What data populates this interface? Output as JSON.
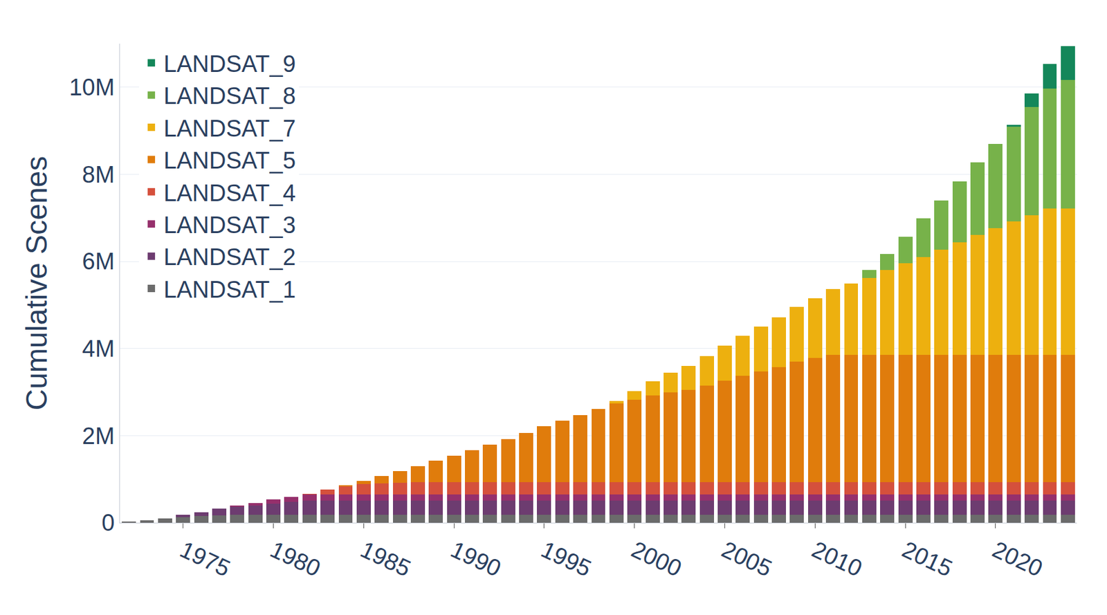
{
  "chart_data": {
    "type": "bar",
    "stacked": true,
    "grid": true,
    "legend": "top-left",
    "y_label": "Cumulative Scenes",
    "x": [
      1972,
      1973,
      1974,
      1975,
      1976,
      1977,
      1978,
      1979,
      1980,
      1981,
      1982,
      1983,
      1984,
      1985,
      1986,
      1987,
      1988,
      1989,
      1990,
      1991,
      1992,
      1993,
      1994,
      1995,
      1996,
      1997,
      1998,
      1999,
      2000,
      2001,
      2002,
      2003,
      2004,
      2005,
      2006,
      2007,
      2008,
      2009,
      2010,
      2011,
      2012,
      2013,
      2014,
      2015,
      2016,
      2017,
      2018,
      2019,
      2020,
      2021,
      2022,
      2023,
      2024
    ],
    "xlim": [
      1971.5,
      2024.5
    ],
    "xticks": [
      1975,
      1980,
      1985,
      1990,
      1995,
      2000,
      2005,
      2010,
      2015,
      2020
    ],
    "ylim": [
      0,
      11000000
    ],
    "yticks": [
      0,
      {
        "value": 2000000,
        "label": "2M"
      },
      {
        "value": 4000000,
        "label": "4M"
      },
      {
        "value": 6000000,
        "label": "6M"
      },
      {
        "value": 8000000,
        "label": "8M"
      },
      {
        "value": 10000000,
        "label": "10M"
      }
    ],
    "series": [
      {
        "name": "LANDSAT_1",
        "color": "#6b6b6b",
        "values": [
          20000,
          60000,
          100000,
          130000,
          150000,
          170000,
          180000,
          180000,
          180000,
          180000,
          180000,
          180000,
          180000,
          180000,
          180000,
          180000,
          180000,
          180000,
          180000,
          180000,
          180000,
          180000,
          180000,
          180000,
          180000,
          180000,
          180000,
          180000,
          180000,
          180000,
          180000,
          180000,
          180000,
          180000,
          180000,
          180000,
          180000,
          180000,
          180000,
          180000,
          180000,
          180000,
          180000,
          180000,
          180000,
          180000,
          180000,
          180000,
          180000,
          180000,
          180000,
          180000,
          180000
        ]
      },
      {
        "name": "LANDSAT_2",
        "color": "#6d3c70",
        "values": [
          0,
          0,
          0,
          50000,
          90000,
          150000,
          190000,
          220000,
          260000,
          300000,
          330000,
          330000,
          330000,
          330000,
          330000,
          330000,
          330000,
          330000,
          330000,
          330000,
          330000,
          330000,
          330000,
          330000,
          330000,
          330000,
          330000,
          330000,
          330000,
          330000,
          330000,
          330000,
          330000,
          330000,
          330000,
          330000,
          330000,
          330000,
          330000,
          330000,
          330000,
          330000,
          330000,
          330000,
          330000,
          330000,
          330000,
          330000,
          330000,
          330000,
          330000,
          330000,
          330000
        ]
      },
      {
        "name": "LANDSAT_3",
        "color": "#96306c",
        "values": [
          0,
          0,
          0,
          0,
          0,
          0,
          30000,
          50000,
          90000,
          120000,
          140000,
          140000,
          140000,
          140000,
          140000,
          140000,
          140000,
          140000,
          140000,
          140000,
          140000,
          140000,
          140000,
          140000,
          140000,
          140000,
          140000,
          140000,
          140000,
          140000,
          140000,
          140000,
          140000,
          140000,
          140000,
          140000,
          140000,
          140000,
          140000,
          140000,
          140000,
          140000,
          140000,
          140000,
          140000,
          140000,
          140000,
          140000,
          140000,
          140000,
          140000,
          140000,
          140000
        ]
      },
      {
        "name": "LANDSAT_4",
        "color": "#d5503c",
        "values": [
          0,
          0,
          0,
          0,
          0,
          0,
          0,
          0,
          0,
          0,
          10000,
          110000,
          190000,
          240000,
          260000,
          270000,
          280000,
          280000,
          280000,
          280000,
          280000,
          280000,
          280000,
          280000,
          280000,
          280000,
          280000,
          280000,
          280000,
          280000,
          280000,
          280000,
          280000,
          280000,
          280000,
          280000,
          280000,
          280000,
          280000,
          280000,
          280000,
          280000,
          280000,
          280000,
          280000,
          280000,
          280000,
          280000,
          280000,
          280000,
          280000,
          280000,
          280000
        ]
      },
      {
        "name": "LANDSAT_5",
        "color": "#e07c0c",
        "values": [
          0,
          0,
          0,
          0,
          0,
          0,
          0,
          0,
          0,
          0,
          0,
          0,
          20000,
          70000,
          160000,
          260000,
          370000,
          500000,
          610000,
          740000,
          860000,
          990000,
          1130000,
          1280000,
          1410000,
          1540000,
          1680000,
          1810000,
          1890000,
          1990000,
          2060000,
          2120000,
          2220000,
          2330000,
          2450000,
          2540000,
          2640000,
          2770000,
          2850000,
          2920000,
          2920000,
          2920000,
          2920000,
          2920000,
          2920000,
          2920000,
          2920000,
          2920000,
          2920000,
          2920000,
          2920000,
          2920000,
          2920000
        ]
      },
      {
        "name": "LANDSAT_7",
        "color": "#edb00f",
        "values": [
          0,
          0,
          0,
          0,
          0,
          0,
          0,
          0,
          0,
          0,
          0,
          0,
          0,
          0,
          0,
          0,
          0,
          0,
          0,
          0,
          0,
          0,
          0,
          0,
          0,
          0,
          0,
          50000,
          200000,
          330000,
          450000,
          550000,
          680000,
          800000,
          910000,
          1040000,
          1140000,
          1250000,
          1370000,
          1510000,
          1640000,
          1770000,
          1950000,
          2110000,
          2250000,
          2420000,
          2590000,
          2760000,
          2920000,
          3070000,
          3210000,
          3360000,
          3370000
        ]
      },
      {
        "name": "LANDSAT_8",
        "color": "#77b24a",
        "values": [
          0,
          0,
          0,
          0,
          0,
          0,
          0,
          0,
          0,
          0,
          0,
          0,
          0,
          0,
          0,
          0,
          0,
          0,
          0,
          0,
          0,
          0,
          0,
          0,
          0,
          0,
          0,
          0,
          0,
          0,
          0,
          0,
          0,
          0,
          0,
          0,
          0,
          0,
          0,
          0,
          0,
          180000,
          370000,
          610000,
          890000,
          1130000,
          1400000,
          1670000,
          1930000,
          2180000,
          2490000,
          2760000,
          2950000
        ]
      },
      {
        "name": "LANDSAT_9",
        "color": "#14875a",
        "values": [
          0,
          0,
          0,
          0,
          0,
          0,
          0,
          0,
          0,
          0,
          0,
          0,
          0,
          0,
          0,
          0,
          0,
          0,
          0,
          0,
          0,
          0,
          0,
          0,
          0,
          0,
          0,
          0,
          0,
          0,
          0,
          0,
          0,
          0,
          0,
          0,
          0,
          0,
          0,
          0,
          0,
          0,
          0,
          0,
          0,
          0,
          0,
          0,
          0,
          30000,
          300000,
          570000,
          780000
        ]
      }
    ]
  }
}
